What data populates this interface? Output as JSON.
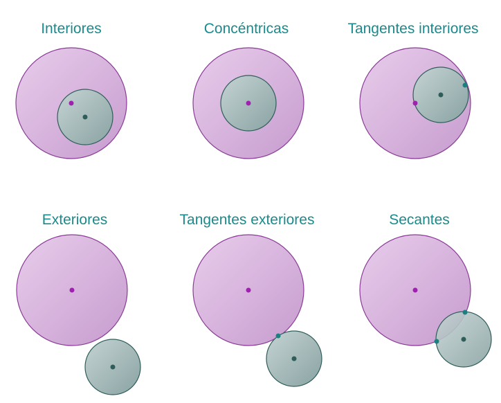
{
  "colors": {
    "title": "#1a8a8c",
    "large_circle_light": "#e8cdeb",
    "large_circle_dark": "#c79ccf",
    "large_circle_stroke": "#8a3a96",
    "small_circle_light": "#c5d3d3",
    "small_circle_dark": "#8aa3a3",
    "small_circle_stroke": "#2f5e5a",
    "large_center_dot": "#a020b0",
    "small_center_dot": "#2f5e5a",
    "tangent_point": "#1a8080"
  },
  "panels": [
    {
      "id": "interiores",
      "title": "Interiores"
    },
    {
      "id": "concentricas",
      "title": "Concéntricas"
    },
    {
      "id": "tangentes-interiores",
      "title": "Tangentes interiores"
    },
    {
      "id": "exteriores",
      "title": "Exteriores"
    },
    {
      "id": "tangentes-exteriores",
      "title": "Tangentes exteriores"
    },
    {
      "id": "secantes",
      "title": "Secantes"
    }
  ]
}
